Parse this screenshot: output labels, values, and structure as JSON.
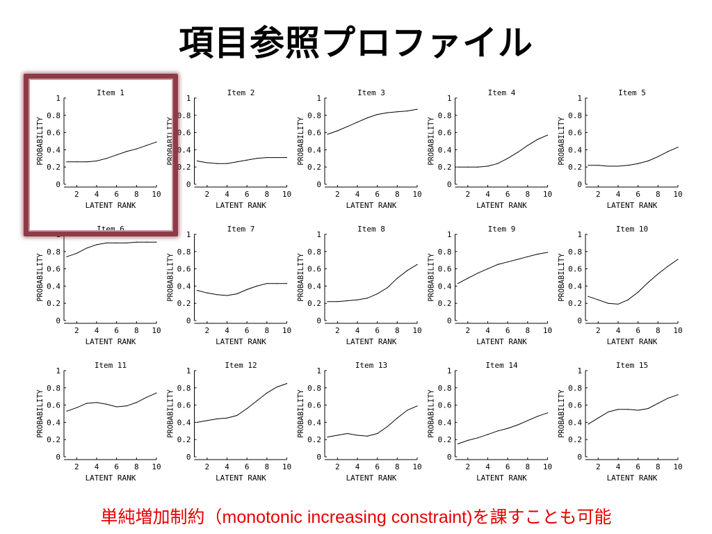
{
  "title": "項目参照プロファイル",
  "caption": "単純増加制約（monotonic increasing constraint)を課すことも可能",
  "colors": {
    "caption": "#e60000",
    "highlight": "#8e3b47",
    "line": "#000000"
  },
  "highlighted_panel": "Item 1",
  "chart_data": [
    {
      "type": "line",
      "title": "Item 1",
      "xlabel": "LATENT RANK",
      "ylabel": "PROBABILITY",
      "xlim": [
        1,
        10
      ],
      "ylim": [
        0,
        1
      ],
      "xticks": [
        2,
        4,
        6,
        8,
        10
      ],
      "yticks": [
        0,
        0.2,
        0.4,
        0.6,
        0.8,
        1
      ],
      "x": [
        1,
        2,
        3,
        4,
        5,
        6,
        7,
        8,
        9,
        10
      ],
      "values": [
        0.26,
        0.26,
        0.26,
        0.27,
        0.3,
        0.34,
        0.38,
        0.41,
        0.45,
        0.49
      ]
    },
    {
      "type": "line",
      "title": "Item 2",
      "xlabel": "LATENT RANK",
      "ylabel": "PROBABILITY",
      "xlim": [
        1,
        10
      ],
      "ylim": [
        0,
        1
      ],
      "xticks": [
        2,
        4,
        6,
        8,
        10
      ],
      "yticks": [
        0,
        0.2,
        0.4,
        0.6,
        0.8,
        1
      ],
      "x": [
        1,
        2,
        3,
        4,
        5,
        6,
        7,
        8,
        9,
        10
      ],
      "values": [
        0.27,
        0.25,
        0.24,
        0.24,
        0.26,
        0.28,
        0.3,
        0.31,
        0.31,
        0.31
      ]
    },
    {
      "type": "line",
      "title": "Item 3",
      "xlabel": "LATENT RANK",
      "ylabel": "PROBABILITY",
      "xlim": [
        1,
        10
      ],
      "ylim": [
        0,
        1
      ],
      "xticks": [
        2,
        4,
        6,
        8,
        10
      ],
      "yticks": [
        0,
        0.2,
        0.4,
        0.6,
        0.8,
        1
      ],
      "x": [
        1,
        2,
        3,
        4,
        5,
        6,
        7,
        8,
        9,
        10
      ],
      "values": [
        0.58,
        0.62,
        0.67,
        0.72,
        0.77,
        0.81,
        0.83,
        0.84,
        0.85,
        0.87
      ]
    },
    {
      "type": "line",
      "title": "Item 4",
      "xlabel": "LATENT RANK",
      "ylabel": "PROBABILITY",
      "xlim": [
        1,
        10
      ],
      "ylim": [
        0,
        1
      ],
      "xticks": [
        2,
        4,
        6,
        8,
        10
      ],
      "yticks": [
        0,
        0.2,
        0.4,
        0.6,
        0.8,
        1
      ],
      "x": [
        1,
        2,
        3,
        4,
        5,
        6,
        7,
        8,
        9,
        10
      ],
      "values": [
        0.2,
        0.2,
        0.2,
        0.21,
        0.24,
        0.3,
        0.37,
        0.45,
        0.52,
        0.57
      ]
    },
    {
      "type": "line",
      "title": "Item 5",
      "xlabel": "LATENT RANK",
      "ylabel": "PROBABILITY",
      "xlim": [
        1,
        10
      ],
      "ylim": [
        0,
        1
      ],
      "xticks": [
        2,
        4,
        6,
        8,
        10
      ],
      "yticks": [
        0,
        0.2,
        0.4,
        0.6,
        0.8,
        1
      ],
      "x": [
        1,
        2,
        3,
        4,
        5,
        6,
        7,
        8,
        9,
        10
      ],
      "values": [
        0.22,
        0.22,
        0.21,
        0.21,
        0.22,
        0.24,
        0.27,
        0.32,
        0.38,
        0.43
      ]
    },
    {
      "type": "line",
      "title": "Item 6",
      "xlabel": "LATENT RANK",
      "ylabel": "PROBABILITY",
      "xlim": [
        1,
        10
      ],
      "ylim": [
        0,
        1
      ],
      "xticks": [
        2,
        4,
        6,
        8,
        10
      ],
      "yticks": [
        0,
        0.2,
        0.4,
        0.6,
        0.8,
        1
      ],
      "x": [
        1,
        2,
        3,
        4,
        5,
        6,
        7,
        8,
        9,
        10
      ],
      "values": [
        0.74,
        0.78,
        0.84,
        0.88,
        0.9,
        0.9,
        0.9,
        0.91,
        0.91,
        0.91
      ]
    },
    {
      "type": "line",
      "title": "Item 7",
      "xlabel": "LATENT RANK",
      "ylabel": "PROBABILITY",
      "xlim": [
        1,
        10
      ],
      "ylim": [
        0,
        1
      ],
      "xticks": [
        2,
        4,
        6,
        8,
        10
      ],
      "yticks": [
        0,
        0.2,
        0.4,
        0.6,
        0.8,
        1
      ],
      "x": [
        1,
        2,
        3,
        4,
        5,
        6,
        7,
        8,
        9,
        10
      ],
      "values": [
        0.35,
        0.32,
        0.3,
        0.29,
        0.31,
        0.36,
        0.4,
        0.43,
        0.43,
        0.43
      ]
    },
    {
      "type": "line",
      "title": "Item 8",
      "xlabel": "LATENT RANK",
      "ylabel": "PROBABILITY",
      "xlim": [
        1,
        10
      ],
      "ylim": [
        0,
        1
      ],
      "xticks": [
        2,
        4,
        6,
        8,
        10
      ],
      "yticks": [
        0,
        0.2,
        0.4,
        0.6,
        0.8,
        1
      ],
      "x": [
        1,
        2,
        3,
        4,
        5,
        6,
        7,
        8,
        9,
        10
      ],
      "values": [
        0.22,
        0.22,
        0.23,
        0.24,
        0.26,
        0.31,
        0.38,
        0.49,
        0.58,
        0.65
      ]
    },
    {
      "type": "line",
      "title": "Item 9",
      "xlabel": "LATENT RANK",
      "ylabel": "PROBABILITY",
      "xlim": [
        1,
        10
      ],
      "ylim": [
        0,
        1
      ],
      "xticks": [
        2,
        4,
        6,
        8,
        10
      ],
      "yticks": [
        0,
        0.2,
        0.4,
        0.6,
        0.8,
        1
      ],
      "x": [
        1,
        2,
        3,
        4,
        5,
        6,
        7,
        8,
        9,
        10
      ],
      "values": [
        0.43,
        0.49,
        0.55,
        0.6,
        0.65,
        0.68,
        0.71,
        0.74,
        0.77,
        0.79
      ]
    },
    {
      "type": "line",
      "title": "Item 10",
      "xlabel": "LATENT RANK",
      "ylabel": "PROBABILITY",
      "xlim": [
        1,
        10
      ],
      "ylim": [
        0,
        1
      ],
      "xticks": [
        2,
        4,
        6,
        8,
        10
      ],
      "yticks": [
        0,
        0.2,
        0.4,
        0.6,
        0.8,
        1
      ],
      "x": [
        1,
        2,
        3,
        4,
        5,
        6,
        7,
        8,
        9,
        10
      ],
      "values": [
        0.28,
        0.24,
        0.2,
        0.19,
        0.24,
        0.33,
        0.44,
        0.54,
        0.63,
        0.71
      ]
    },
    {
      "type": "line",
      "title": "Item 11",
      "xlabel": "LATENT RANK",
      "ylabel": "PROBABILITY",
      "xlim": [
        1,
        10
      ],
      "ylim": [
        0,
        1
      ],
      "xticks": [
        2,
        4,
        6,
        8,
        10
      ],
      "yticks": [
        0,
        0.2,
        0.4,
        0.6,
        0.8,
        1
      ],
      "x": [
        1,
        2,
        3,
        4,
        5,
        6,
        7,
        8,
        9,
        10
      ],
      "values": [
        0.53,
        0.57,
        0.62,
        0.63,
        0.61,
        0.58,
        0.59,
        0.63,
        0.69,
        0.74
      ]
    },
    {
      "type": "line",
      "title": "Item 12",
      "xlabel": "LATENT RANK",
      "ylabel": "PROBABILITY",
      "xlim": [
        1,
        10
      ],
      "ylim": [
        0,
        1
      ],
      "xticks": [
        2,
        4,
        6,
        8,
        10
      ],
      "yticks": [
        0,
        0.2,
        0.4,
        0.6,
        0.8,
        1
      ],
      "x": [
        1,
        2,
        3,
        4,
        5,
        6,
        7,
        8,
        9,
        10
      ],
      "values": [
        0.4,
        0.42,
        0.44,
        0.45,
        0.48,
        0.56,
        0.65,
        0.74,
        0.81,
        0.85
      ]
    },
    {
      "type": "line",
      "title": "Item 13",
      "xlabel": "LATENT RANK",
      "ylabel": "PROBABILITY",
      "xlim": [
        1,
        10
      ],
      "ylim": [
        0,
        1
      ],
      "xticks": [
        2,
        4,
        6,
        8,
        10
      ],
      "yticks": [
        0,
        0.2,
        0.4,
        0.6,
        0.8,
        1
      ],
      "x": [
        1,
        2,
        3,
        4,
        5,
        6,
        7,
        8,
        9,
        10
      ],
      "values": [
        0.23,
        0.25,
        0.27,
        0.25,
        0.24,
        0.27,
        0.35,
        0.45,
        0.54,
        0.59
      ]
    },
    {
      "type": "line",
      "title": "Item 14",
      "xlabel": "LATENT RANK",
      "ylabel": "PROBABILITY",
      "xlim": [
        1,
        10
      ],
      "ylim": [
        0,
        1
      ],
      "xticks": [
        2,
        4,
        6,
        8,
        10
      ],
      "yticks": [
        0,
        0.2,
        0.4,
        0.6,
        0.8,
        1
      ],
      "x": [
        1,
        2,
        3,
        4,
        5,
        6,
        7,
        8,
        9,
        10
      ],
      "values": [
        0.15,
        0.19,
        0.22,
        0.26,
        0.3,
        0.33,
        0.37,
        0.42,
        0.47,
        0.51
      ]
    },
    {
      "type": "line",
      "title": "Item 15",
      "xlabel": "LATENT RANK",
      "ylabel": "PROBABILITY",
      "xlim": [
        1,
        10
      ],
      "ylim": [
        0,
        1
      ],
      "xticks": [
        2,
        4,
        6,
        8,
        10
      ],
      "yticks": [
        0,
        0.2,
        0.4,
        0.6,
        0.8,
        1
      ],
      "x": [
        1,
        2,
        3,
        4,
        5,
        6,
        7,
        8,
        9,
        10
      ],
      "values": [
        0.38,
        0.45,
        0.52,
        0.55,
        0.55,
        0.54,
        0.56,
        0.62,
        0.68,
        0.72
      ]
    }
  ]
}
